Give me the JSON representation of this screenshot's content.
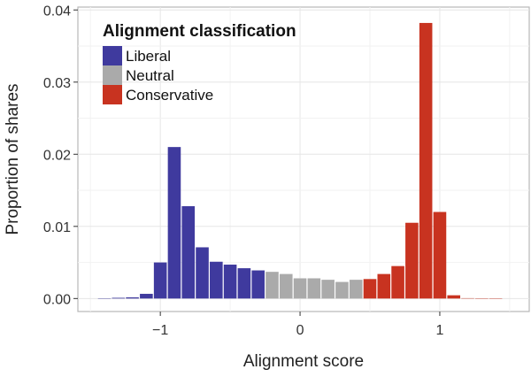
{
  "chart_data": {
    "type": "bar",
    "title": "",
    "xlabel": "Alignment score",
    "ylabel": "Proportion of shares",
    "xlim": [
      -1.59,
      1.64
    ],
    "ylim": [
      -0.0018,
      0.0404
    ],
    "xticks": [
      {
        "value": -1,
        "label": "−1"
      },
      {
        "value": 0,
        "label": "0"
      },
      {
        "value": 1,
        "label": "1"
      }
    ],
    "yticks": [
      {
        "value": 0,
        "label": "0.00"
      },
      {
        "value": 0.01,
        "label": "0.01"
      },
      {
        "value": 0.02,
        "label": "0.02"
      },
      {
        "value": 0.03,
        "label": "0.03"
      },
      {
        "value": 0.04,
        "label": "0.04"
      }
    ],
    "grid": true,
    "bin_width": 0.1,
    "legend": {
      "title": "Alignment classification",
      "placement": "top-left",
      "entries": [
        {
          "key": "liberal",
          "label": "Liberal",
          "color": "#3f3a9e"
        },
        {
          "key": "neutral",
          "label": "Neutral",
          "color": "#aaaaaa"
        },
        {
          "key": "conservative",
          "label": "Conservative",
          "color": "#c83320"
        }
      ]
    },
    "bars": [
      {
        "x": -1.4,
        "value": 3e-05,
        "class": "liberal"
      },
      {
        "x": -1.3,
        "value": 0.0001,
        "class": "liberal"
      },
      {
        "x": -1.2,
        "value": 0.00016,
        "class": "liberal"
      },
      {
        "x": -1.1,
        "value": 0.00065,
        "class": "liberal"
      },
      {
        "x": -1.0,
        "value": 0.005,
        "class": "liberal"
      },
      {
        "x": -0.9,
        "value": 0.021,
        "class": "liberal"
      },
      {
        "x": -0.8,
        "value": 0.0128,
        "class": "liberal"
      },
      {
        "x": -0.7,
        "value": 0.0071,
        "class": "liberal"
      },
      {
        "x": -0.6,
        "value": 0.0051,
        "class": "liberal"
      },
      {
        "x": -0.5,
        "value": 0.0047,
        "class": "liberal"
      },
      {
        "x": -0.4,
        "value": 0.0042,
        "class": "liberal"
      },
      {
        "x": -0.3,
        "value": 0.0039,
        "class": "liberal"
      },
      {
        "x": -0.2,
        "value": 0.0037,
        "class": "neutral"
      },
      {
        "x": -0.1,
        "value": 0.0034,
        "class": "neutral"
      },
      {
        "x": 0.0,
        "value": 0.0028,
        "class": "neutral"
      },
      {
        "x": 0.1,
        "value": 0.0028,
        "class": "neutral"
      },
      {
        "x": 0.2,
        "value": 0.0026,
        "class": "neutral"
      },
      {
        "x": 0.3,
        "value": 0.0023,
        "class": "neutral"
      },
      {
        "x": 0.4,
        "value": 0.0026,
        "class": "neutral"
      },
      {
        "x": 0.5,
        "value": 0.0027,
        "class": "conservative"
      },
      {
        "x": 0.6,
        "value": 0.0034,
        "class": "conservative"
      },
      {
        "x": 0.7,
        "value": 0.0045,
        "class": "conservative"
      },
      {
        "x": 0.8,
        "value": 0.0105,
        "class": "conservative"
      },
      {
        "x": 0.9,
        "value": 0.0382,
        "class": "conservative"
      },
      {
        "x": 1.0,
        "value": 0.012,
        "class": "conservative"
      },
      {
        "x": 1.1,
        "value": 0.00045,
        "class": "conservative"
      },
      {
        "x": 1.2,
        "value": 5e-05,
        "class": "conservative"
      },
      {
        "x": 1.3,
        "value": 3e-05,
        "class": "conservative"
      },
      {
        "x": 1.4,
        "value": 2e-05,
        "class": "conservative"
      }
    ]
  }
}
